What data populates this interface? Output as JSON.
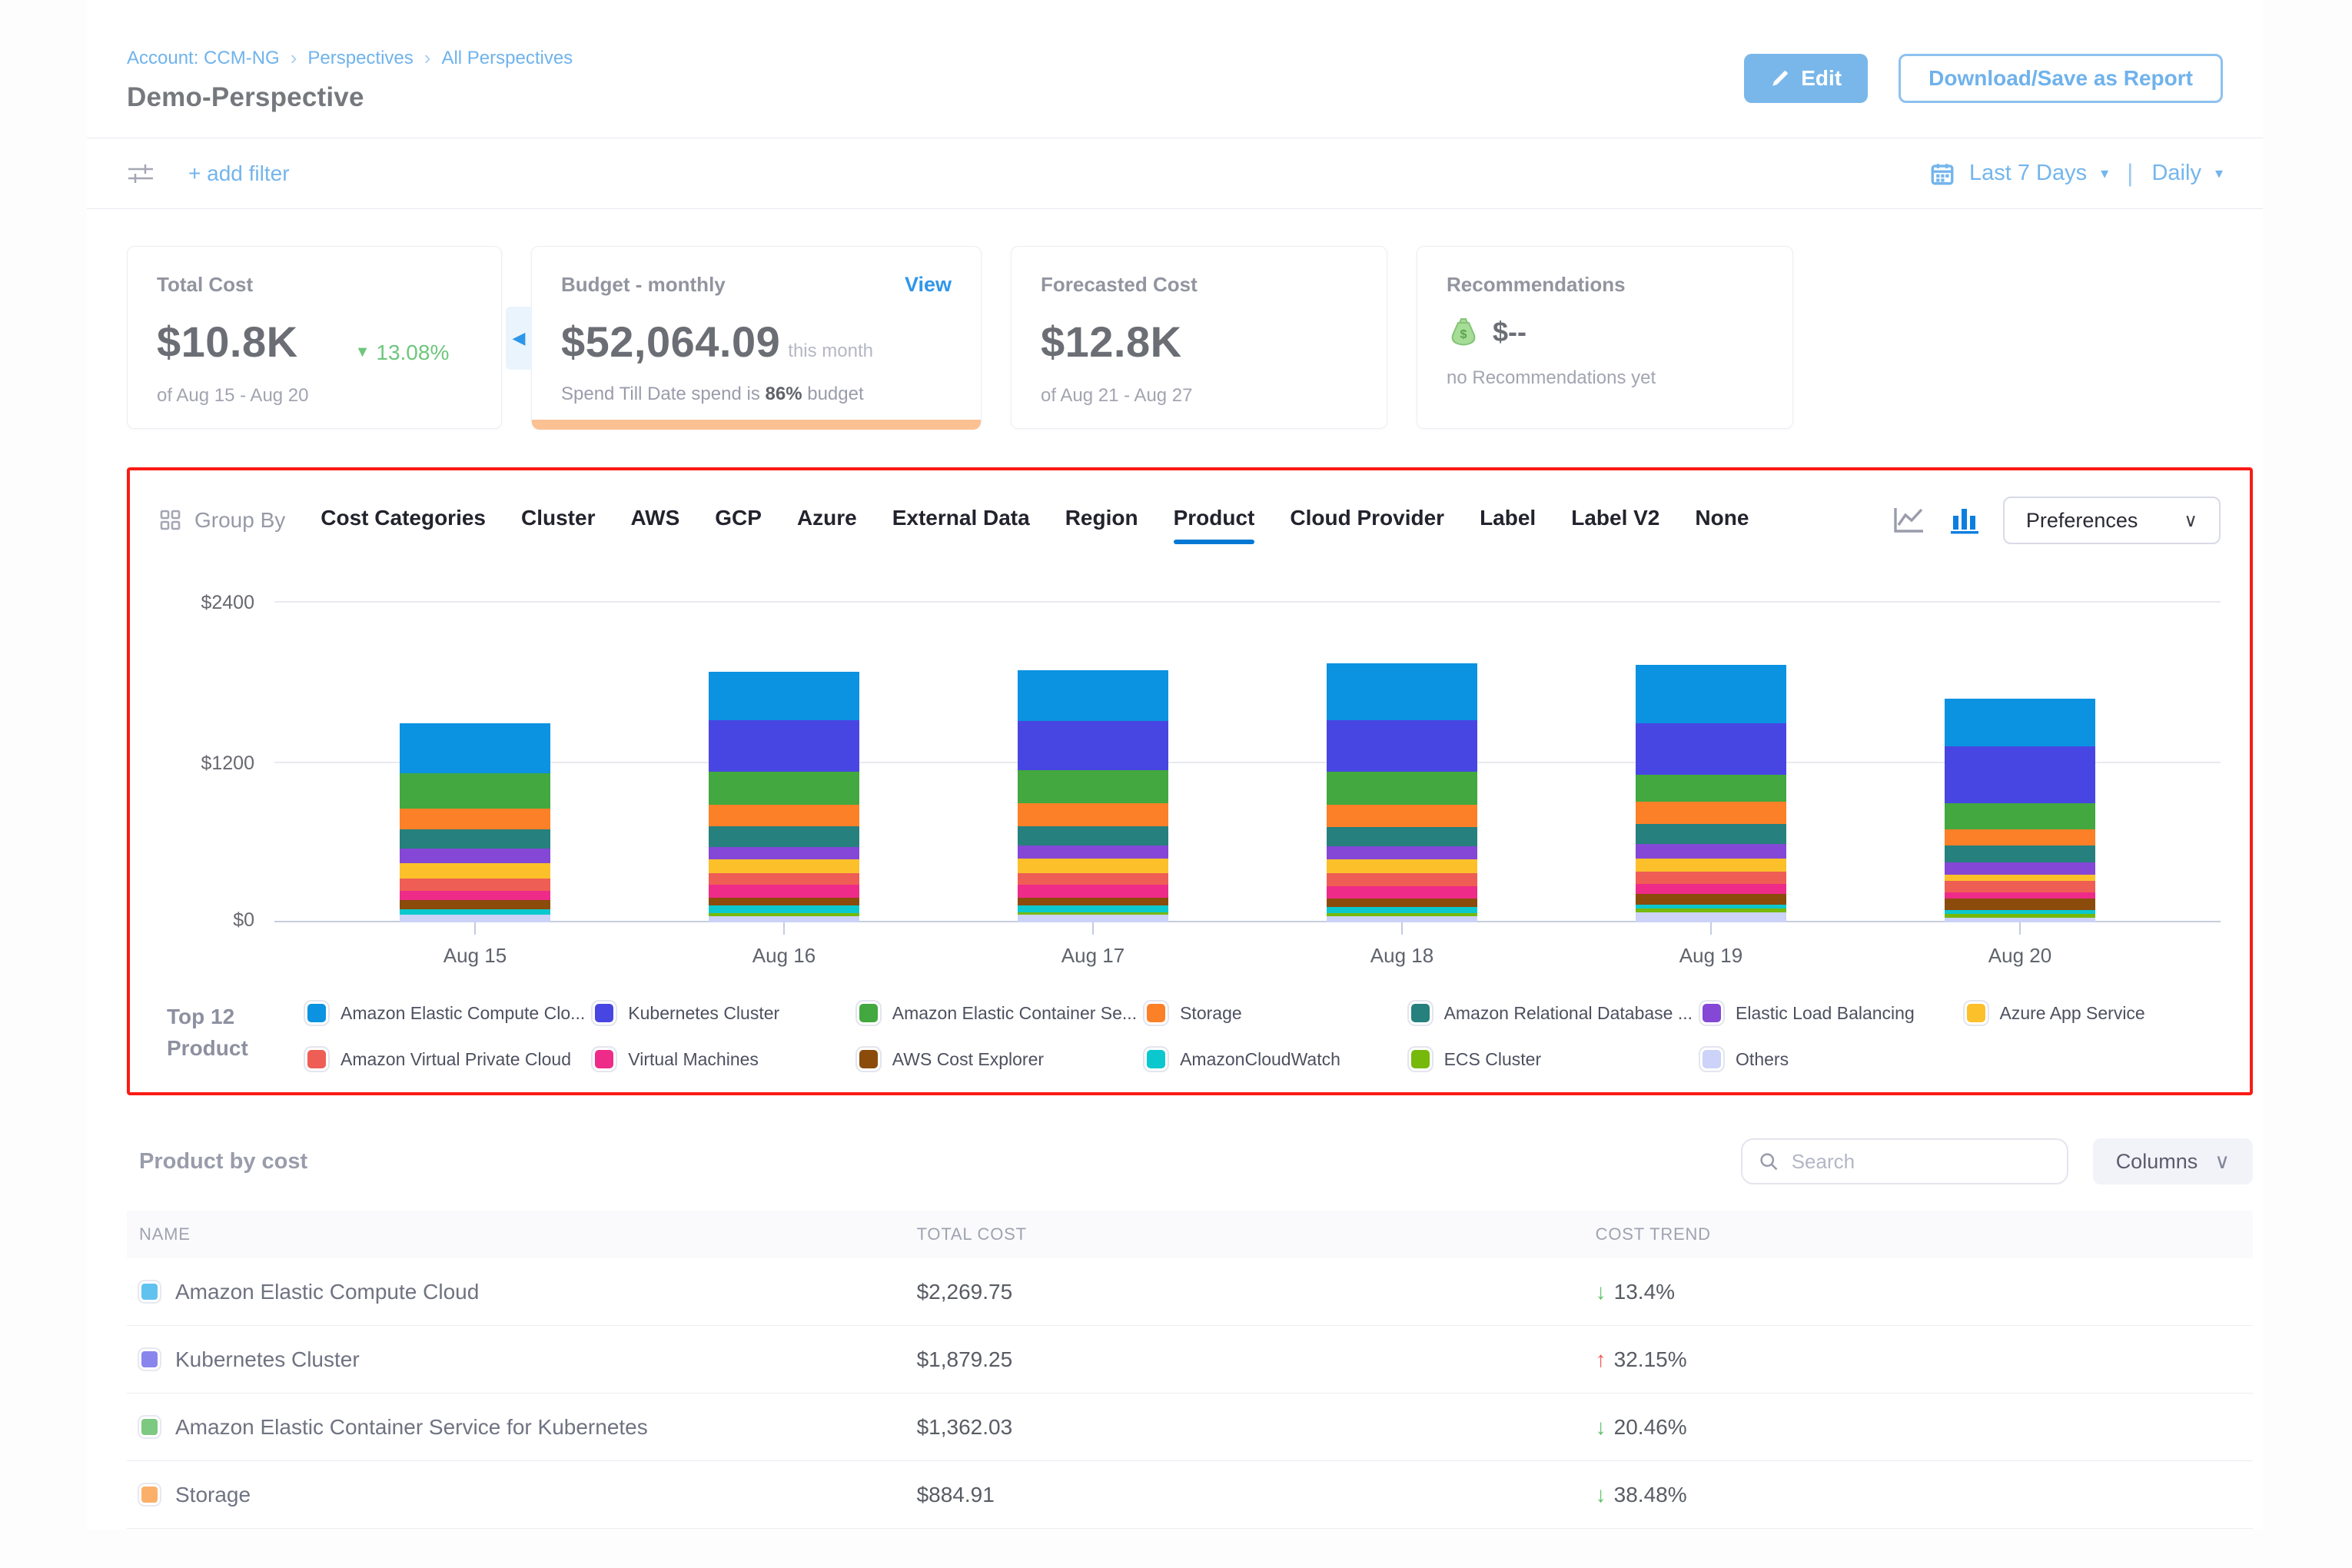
{
  "colors": {
    "accent_blue": "#0278d5",
    "link_blue": "#6fb3ec",
    "highlight_red": "#fb1b15",
    "budget_bar": "#fcc193",
    "trend_up_red": "#f0584f",
    "trend_down_green": "#5fc16a"
  },
  "header": {
    "breadcrumb": {
      "account": "Account: CCM-NG",
      "section": "Perspectives",
      "page": "All Perspectives"
    },
    "title": "Demo-Perspective",
    "edit_label": "Edit",
    "download_label": "Download/Save as Report"
  },
  "filter_bar": {
    "add_filter_label": "+ add filter",
    "date_range_label": "Last 7 Days",
    "granularity_label": "Daily"
  },
  "cards": {
    "total_cost": {
      "label": "Total Cost",
      "value": "$10.8K",
      "trend": "13.08%",
      "period": "of Aug 15 - Aug 20"
    },
    "budget": {
      "label": "Budget - monthly",
      "view_label": "View",
      "value": "$52,064.09",
      "value_suffix": "this month",
      "spend_prefix": "Spend Till Date spend is ",
      "spend_pct": "86%",
      "spend_suffix": " budget"
    },
    "forecast": {
      "label": "Forecasted Cost",
      "value": "$12.8K",
      "period": "of Aug 21 - Aug 27"
    },
    "recommendations": {
      "label": "Recommendations",
      "value": "$--",
      "empty_text": "no Recommendations yet"
    }
  },
  "group_by": {
    "label": "Group By",
    "tabs": [
      "Cost Categories",
      "Cluster",
      "AWS",
      "GCP",
      "Azure",
      "External Data",
      "Region",
      "Product",
      "Cloud Provider",
      "Label",
      "Label V2",
      "None"
    ],
    "selected": "Product",
    "preferences_label": "Preferences"
  },
  "chart_data": {
    "type": "bar",
    "stacked": true,
    "categories": [
      "Aug 15",
      "Aug 16",
      "Aug 17",
      "Aug 18",
      "Aug 19",
      "Aug 20"
    ],
    "ylim": [
      0,
      2400
    ],
    "ytick_labels": [
      "$0",
      "$1200",
      "$2400"
    ],
    "grid": true,
    "legend_position": "bottom",
    "series": [
      {
        "name": "Amazon Elastic Compute Clo...",
        "color": "#0b92e1",
        "values": [
          375,
          364,
          377,
          424,
          435,
          355
        ]
      },
      {
        "name": "Kubernetes Cluster",
        "color": "#4846e2",
        "values": [
          0,
          383,
          372,
          389,
          384,
          426
        ]
      },
      {
        "name": "Amazon Elastic Container Se...",
        "color": "#42a83f",
        "values": [
          262,
          247,
          245,
          243,
          201,
          194
        ]
      },
      {
        "name": "Storage",
        "color": "#fb8028",
        "values": [
          155,
          160,
          169,
          166,
          170,
          124
        ]
      },
      {
        "name": "Amazon Relational Database ...",
        "color": "#26807d",
        "values": [
          143,
          157,
          145,
          145,
          146,
          122
        ]
      },
      {
        "name": "Elastic Load Balancing",
        "color": "#8447d6",
        "values": [
          109,
          92,
          101,
          99,
          108,
          93
        ]
      },
      {
        "name": "Azure App Service",
        "color": "#fcc02b",
        "values": [
          116,
          101,
          108,
          101,
          97,
          48
        ]
      },
      {
        "name": "Amazon Virtual Private Cloud",
        "color": "#ef5e55",
        "values": [
          93,
          89,
          86,
          101,
          97,
          86
        ]
      },
      {
        "name": "Virtual Machines",
        "color": "#ee2b88",
        "values": [
          70,
          96,
          97,
          91,
          73,
          45
        ]
      },
      {
        "name": "AWS Cost Explorer",
        "color": "#8a4b0b",
        "values": [
          70,
          55,
          58,
          64,
          82,
          87
        ]
      },
      {
        "name": "AmazonCloudWatch",
        "color": "#0bc8ce",
        "values": [
          39,
          58,
          50,
          43,
          29,
          29
        ]
      },
      {
        "name": "ECS Cluster",
        "color": "#76b90b",
        "values": [
          0,
          25,
          20,
          23,
          25,
          25
        ]
      },
      {
        "name": "Others",
        "color": "#ccd2f8",
        "values": [
          56,
          46,
          56,
          48,
          76,
          37
        ]
      }
    ]
  },
  "legend": {
    "title_line1": "Top 12",
    "title_line2": "Product"
  },
  "table": {
    "title": "Product by cost",
    "search_placeholder": "Search",
    "columns_label": "Columns",
    "headers": {
      "name": "NAME",
      "cost": "TOTAL COST",
      "trend": "COST TREND"
    },
    "rows": [
      {
        "name": "Amazon Elastic Compute Cloud",
        "swatch": "#62c2ef",
        "cost": "$2,269.75",
        "trend": "13.4%",
        "dir": "down"
      },
      {
        "name": "Kubernetes Cluster",
        "swatch": "#8886ec",
        "cost": "$1,879.25",
        "trend": "32.15%",
        "dir": "up"
      },
      {
        "name": "Amazon Elastic Container Service for Kubernetes",
        "swatch": "#7dc981",
        "cost": "$1,362.03",
        "trend": "20.46%",
        "dir": "down"
      },
      {
        "name": "Storage",
        "swatch": "#fbb06a",
        "cost": "$884.91",
        "trend": "38.48%",
        "dir": "down"
      }
    ]
  }
}
